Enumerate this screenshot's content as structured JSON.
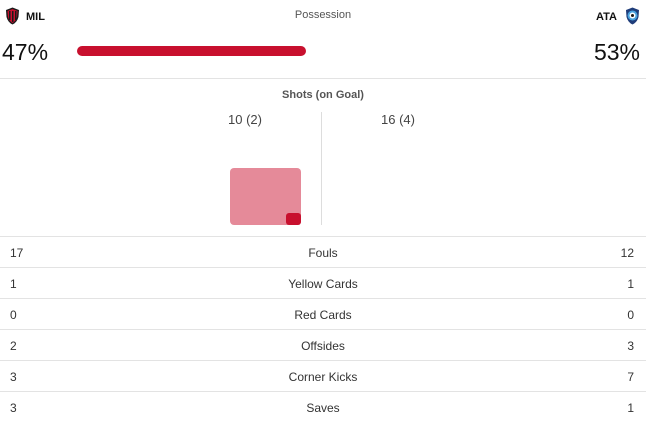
{
  "header": {
    "home_abbr": "MIL",
    "away_abbr": "ATA",
    "possession_title": "Possession",
    "home_crest_icon": "ac-milan-crest-icon",
    "away_crest_icon": "atalanta-crest-icon"
  },
  "possession": {
    "home_pct_text": "47%",
    "away_pct_text": "53%",
    "home_fraction": 0.47,
    "home_color": "#c8102e"
  },
  "shots": {
    "title": "Shots (on Goal)",
    "home_text": "10 (2)",
    "away_text": "16 (4)",
    "home_color": "#e58a99",
    "on_goal_color": "#c8102e"
  },
  "stats": [
    {
      "home": "17",
      "label": "Fouls",
      "away": "12"
    },
    {
      "home": "1",
      "label": "Yellow Cards",
      "away": "1"
    },
    {
      "home": "0",
      "label": "Red Cards",
      "away": "0"
    },
    {
      "home": "2",
      "label": "Offsides",
      "away": "3"
    },
    {
      "home": "3",
      "label": "Corner Kicks",
      "away": "7"
    },
    {
      "home": "3",
      "label": "Saves",
      "away": "1"
    }
  ]
}
